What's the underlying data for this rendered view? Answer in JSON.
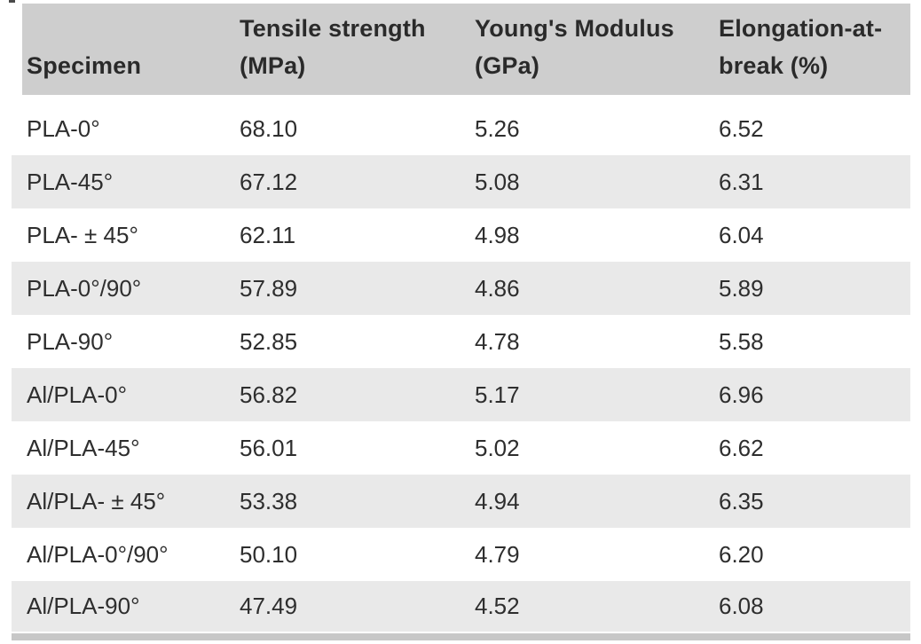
{
  "table": {
    "header": {
      "columns": [
        {
          "label": "Specimen",
          "lines": [
            "Specimen"
          ]
        },
        {
          "label": "Tensile strength (MPa)",
          "lines": [
            "Tensile strength",
            "(MPa)"
          ]
        },
        {
          "label": "Young's Modulus (GPa)",
          "lines": [
            "Young's Modulus",
            "(GPa)"
          ]
        },
        {
          "label": "Elongation-at-break (%)",
          "lines": [
            "Elongation-at-",
            "break (%)"
          ]
        }
      ]
    },
    "rows": [
      [
        "PLA-0°",
        "68.10",
        "5.26",
        "6.52"
      ],
      [
        "PLA-45°",
        "67.12",
        "5.08",
        "6.31"
      ],
      [
        "PLA- ± 45°",
        "62.11",
        "4.98",
        "6.04"
      ],
      [
        "PLA-0°/90°",
        "57.89",
        "4.86",
        "5.89"
      ],
      [
        "PLA-90°",
        "52.85",
        "4.78",
        "5.58"
      ],
      [
        "Al/PLA-0°",
        "56.82",
        "5.17",
        "6.96"
      ],
      [
        "Al/PLA-45°",
        "56.01",
        "5.02",
        "6.62"
      ],
      [
        "Al/PLA- ± 45°",
        "53.38",
        "4.94",
        "6.35"
      ],
      [
        "Al/PLA-0°/90°",
        "50.10",
        "4.79",
        "6.20"
      ],
      [
        "Al/PLA-90°",
        "47.49",
        "4.52",
        "6.08"
      ]
    ]
  },
  "colors": {
    "header_bg": "#cecece",
    "stripe_bg": "#e9e9e9",
    "rule_bg": "#c7c7c7",
    "header_text": "#2a2a2a",
    "body_text": "#2e2e2e"
  }
}
